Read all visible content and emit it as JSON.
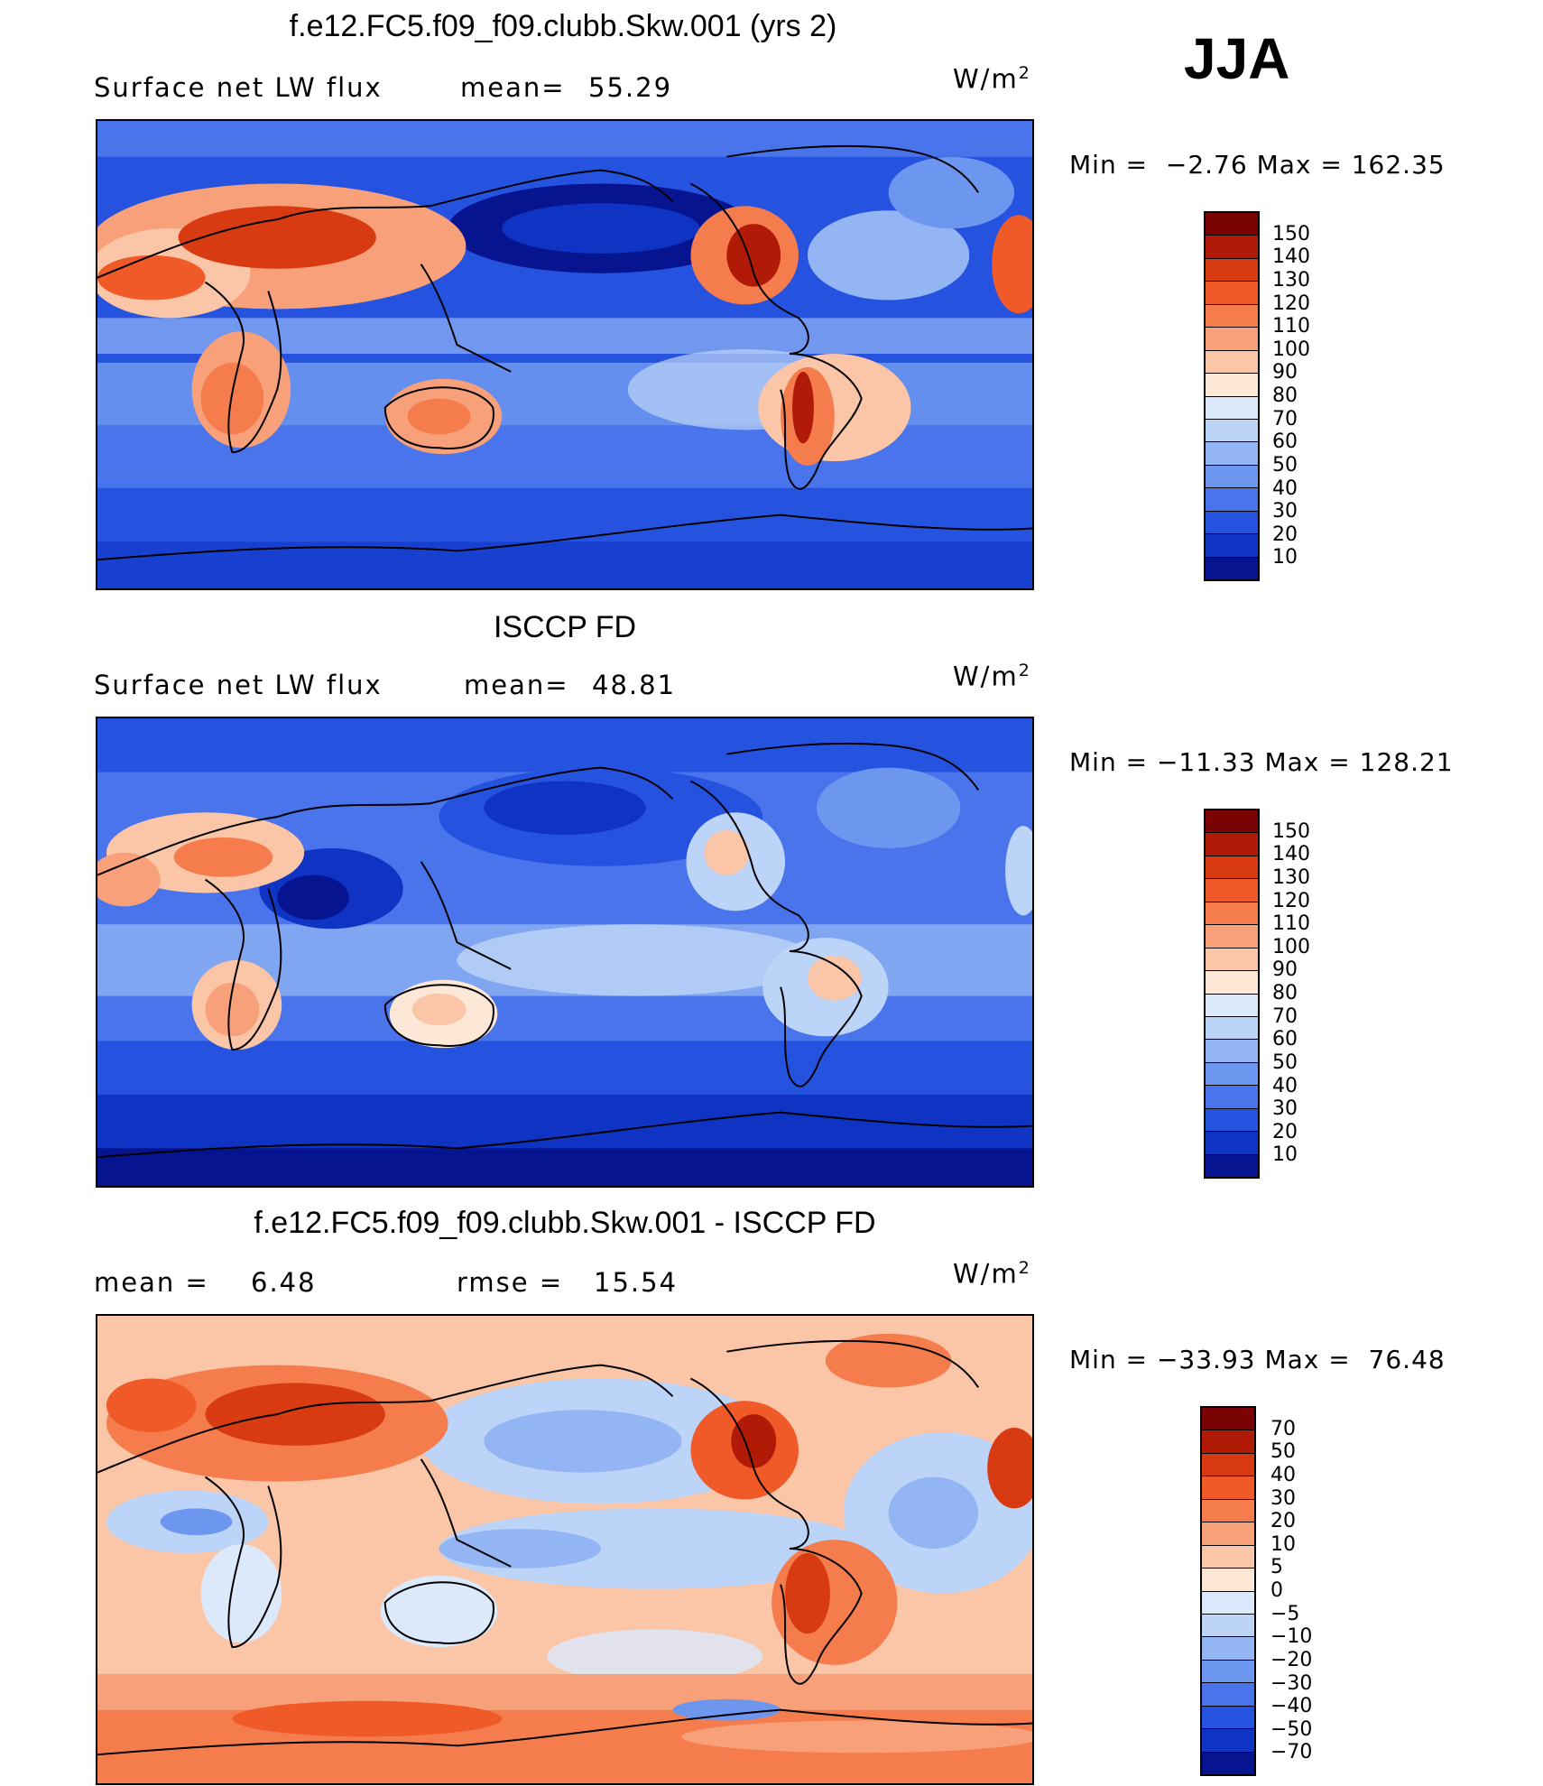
{
  "season": "JJA",
  "panels": [
    {
      "title": "f.e12.FC5.f09_f09.clubb.Skw.001 (yrs 2)",
      "left_label": "Surface net LW flux",
      "stat1_label": "mean=",
      "stat1_value": "55.29",
      "stat2_label": "",
      "stat2_value": "",
      "units_base": "W/m",
      "units_sup": "2",
      "min_label": "Min =",
      "min_value": "−2.76",
      "max_label": "Max =",
      "max_value": "162.35"
    },
    {
      "title": "ISCCP FD",
      "left_label": "Surface net LW flux",
      "stat1_label": "mean=",
      "stat1_value": "48.81",
      "stat2_label": "",
      "stat2_value": "",
      "units_base": "W/m",
      "units_sup": "2",
      "min_label": "Min =",
      "min_value": "−11.33",
      "max_label": "Max =",
      "max_value": "128.21"
    },
    {
      "title": "f.e12.FC5.f09_f09.clubb.Skw.001 - ISCCP FD",
      "left_label": "mean =",
      "stat1_label": "",
      "stat1_value": "6.48",
      "stat2_label": "rmse =",
      "stat2_value": "15.54",
      "units_base": "W/m",
      "units_sup": "2",
      "min_label": "Min =",
      "min_value": "−33.93",
      "max_label": "Max =",
      "max_value": "76.48"
    }
  ],
  "colorbars": {
    "abs": {
      "labels": [
        "150",
        "140",
        "130",
        "120",
        "110",
        "100",
        "90",
        "80",
        "70",
        "60",
        "50",
        "40",
        "30",
        "20",
        "10"
      ],
      "colors": [
        "#7a0403",
        "#b01a06",
        "#d83a12",
        "#f05a28",
        "#f57d4d",
        "#f8a07a",
        "#fbc5a8",
        "#fde8d8",
        "#dbe9fb",
        "#bcd4f7",
        "#93b5f3",
        "#6d96ef",
        "#4a74eb",
        "#2553e0",
        "#0f34c4",
        "#06148f"
      ]
    },
    "diff": {
      "labels": [
        "70",
        "50",
        "40",
        "30",
        "20",
        "10",
        "5",
        "0",
        "−5",
        "−10",
        "−20",
        "−30",
        "−40",
        "−50",
        "−70"
      ],
      "colors": [
        "#7a0403",
        "#b01a06",
        "#d83a12",
        "#f05a28",
        "#f57d4d",
        "#f8a07a",
        "#fbc5a8",
        "#fde8d8",
        "#dbe9fb",
        "#bcd4f7",
        "#93b5f3",
        "#6d96ef",
        "#4a74eb",
        "#2553e0",
        "#0f34c4",
        "#06148f"
      ]
    }
  }
}
